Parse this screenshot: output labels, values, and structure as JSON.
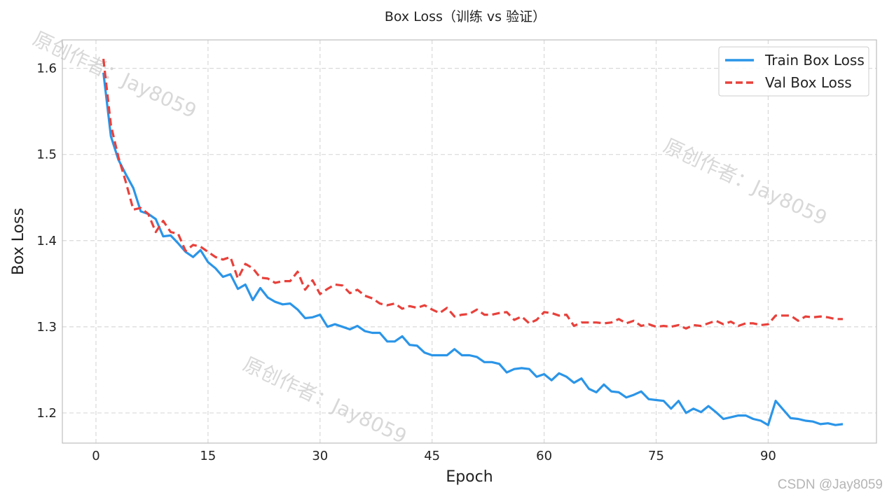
{
  "chart_data": {
    "type": "line",
    "title": "Box Loss（训练 vs 验证）",
    "xlabel": "Epoch",
    "ylabel": "Box Loss",
    "xlim": [
      -4.5,
      104.5
    ],
    "ylim": [
      1.165,
      1.633
    ],
    "xticks": [
      "0",
      "15",
      "30",
      "45",
      "60",
      "75",
      "90"
    ],
    "yticks": [
      "1.2",
      "1.3",
      "1.4",
      "1.5",
      "1.6"
    ],
    "grid": true,
    "legend_position": "top-right",
    "x": [
      1,
      2,
      3,
      4,
      5,
      6,
      7,
      8,
      9,
      10,
      11,
      12,
      13,
      14,
      15,
      16,
      17,
      18,
      19,
      20,
      21,
      22,
      23,
      24,
      25,
      26,
      27,
      28,
      29,
      30,
      31,
      32,
      33,
      34,
      35,
      36,
      37,
      38,
      39,
      40,
      41,
      42,
      43,
      44,
      45,
      46,
      47,
      48,
      49,
      50,
      51,
      52,
      53,
      54,
      55,
      56,
      57,
      58,
      59,
      60,
      61,
      62,
      63,
      64,
      65,
      66,
      67,
      68,
      69,
      70,
      71,
      72,
      73,
      74,
      75,
      76,
      77,
      78,
      79,
      80,
      81,
      82,
      83,
      84,
      85,
      86,
      87,
      88,
      89,
      90,
      91,
      92,
      93,
      94,
      95,
      96,
      97,
      98,
      99,
      100
    ],
    "series": [
      {
        "name": "Train Box Loss",
        "color": "#2b95e8",
        "dash": "solid",
        "values": [
          1.595,
          1.521,
          1.494,
          1.477,
          1.461,
          1.434,
          1.431,
          1.425,
          1.405,
          1.406,
          1.397,
          1.387,
          1.381,
          1.389,
          1.375,
          1.368,
          1.358,
          1.361,
          1.344,
          1.349,
          1.331,
          1.345,
          1.334,
          1.329,
          1.326,
          1.327,
          1.32,
          1.31,
          1.311,
          1.314,
          1.3,
          1.303,
          1.3,
          1.297,
          1.301,
          1.295,
          1.293,
          1.293,
          1.283,
          1.283,
          1.289,
          1.279,
          1.278,
          1.27,
          1.267,
          1.267,
          1.267,
          1.274,
          1.267,
          1.267,
          1.265,
          1.259,
          1.259,
          1.257,
          1.247,
          1.251,
          1.252,
          1.251,
          1.242,
          1.245,
          1.238,
          1.246,
          1.242,
          1.235,
          1.24,
          1.228,
          1.224,
          1.233,
          1.225,
          1.224,
          1.218,
          1.221,
          1.225,
          1.216,
          1.215,
          1.214,
          1.205,
          1.214,
          1.2,
          1.205,
          1.201,
          1.208,
          1.201,
          1.193,
          1.195,
          1.197,
          1.197,
          1.193,
          1.191,
          1.186,
          1.214,
          1.204,
          1.194,
          1.193,
          1.191,
          1.19,
          1.187,
          1.188,
          1.186,
          1.187
        ]
      },
      {
        "name": "Val Box Loss",
        "color": "#e8413b",
        "dash": "dashed",
        "values": [
          1.611,
          1.534,
          1.497,
          1.468,
          1.436,
          1.438,
          1.431,
          1.41,
          1.423,
          1.41,
          1.408,
          1.388,
          1.395,
          1.393,
          1.387,
          1.381,
          1.378,
          1.381,
          1.356,
          1.373,
          1.368,
          1.357,
          1.356,
          1.351,
          1.353,
          1.353,
          1.364,
          1.343,
          1.354,
          1.338,
          1.344,
          1.349,
          1.348,
          1.339,
          1.343,
          1.336,
          1.333,
          1.327,
          1.325,
          1.327,
          1.321,
          1.324,
          1.322,
          1.325,
          1.32,
          1.316,
          1.322,
          1.312,
          1.314,
          1.315,
          1.32,
          1.314,
          1.314,
          1.316,
          1.317,
          1.308,
          1.312,
          1.304,
          1.308,
          1.317,
          1.316,
          1.313,
          1.314,
          1.301,
          1.305,
          1.305,
          1.305,
          1.304,
          1.305,
          1.309,
          1.304,
          1.307,
          1.301,
          1.303,
          1.3,
          1.301,
          1.3,
          1.302,
          1.298,
          1.302,
          1.301,
          1.304,
          1.307,
          1.303,
          1.306,
          1.301,
          1.304,
          1.304,
          1.302,
          1.303,
          1.313,
          1.313,
          1.313,
          1.307,
          1.312,
          1.311,
          1.312,
          1.311,
          1.309,
          1.309
        ]
      }
    ]
  },
  "watermark": {
    "text": "原创作者：Jay8059",
    "corner": "CSDN @Jay8059"
  }
}
